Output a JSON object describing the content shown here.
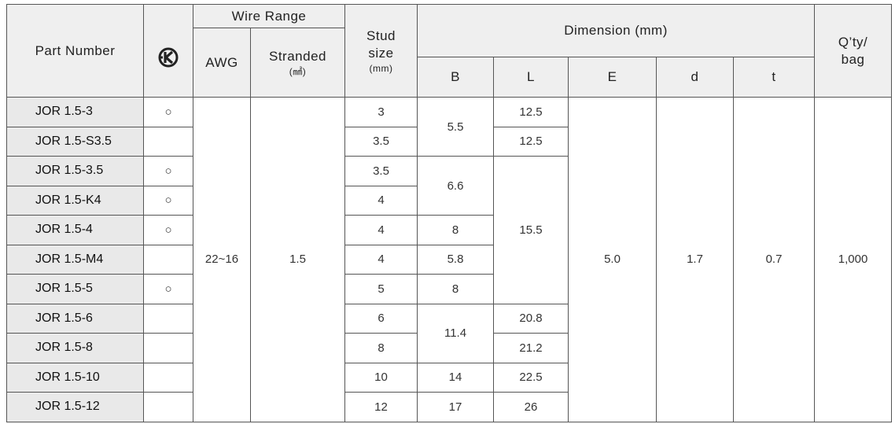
{
  "header": {
    "part_number": "Part Number",
    "wire_range": "Wire Range",
    "awg": "AWG",
    "stranded": "Stranded",
    "stranded_unit": "(㎟)",
    "stud_size": "Stud\nsize",
    "stud_unit": "(mm)",
    "dimension": "Dimension (mm)",
    "b": "B",
    "l": "L",
    "e": "E",
    "d": "d",
    "t": "t",
    "qty": "Q’ty/\nbag"
  },
  "rows": [
    {
      "part": "JOR 1.5-3",
      "kc": "○",
      "awg": "22~16",
      "stranded": "1.5",
      "stud": "3",
      "b": "5.5",
      "l": "12.5",
      "e": "5.0",
      "d": "1.7",
      "t": "0.7",
      "qty": "1,000"
    },
    {
      "part": "JOR 1.5-S3.5",
      "stud": "3.5",
      "l": "12.5"
    },
    {
      "part": "JOR 1.5-3.5",
      "kc": "○",
      "stud": "3.5",
      "b": "6.6",
      "l": "15.5"
    },
    {
      "part": "JOR 1.5-K4",
      "kc": "○",
      "stud": "4"
    },
    {
      "part": "JOR 1.5-4",
      "kc": "○",
      "stud": "4",
      "b": "8"
    },
    {
      "part": "JOR 1.5-M4",
      "stud": "4",
      "b": "5.8"
    },
    {
      "part": "JOR 1.5-5",
      "kc": "○",
      "stud": "5",
      "b": "8"
    },
    {
      "part": "JOR 1.5-6",
      "stud": "6",
      "b": "11.4",
      "l": "20.8"
    },
    {
      "part": "JOR 1.5-8",
      "stud": "8",
      "l": "21.2"
    },
    {
      "part": "JOR 1.5-10",
      "stud": "10",
      "b": "14",
      "l": "22.5"
    },
    {
      "part": "JOR 1.5-12",
      "stud": "12",
      "b": "17",
      "l": "26"
    }
  ]
}
